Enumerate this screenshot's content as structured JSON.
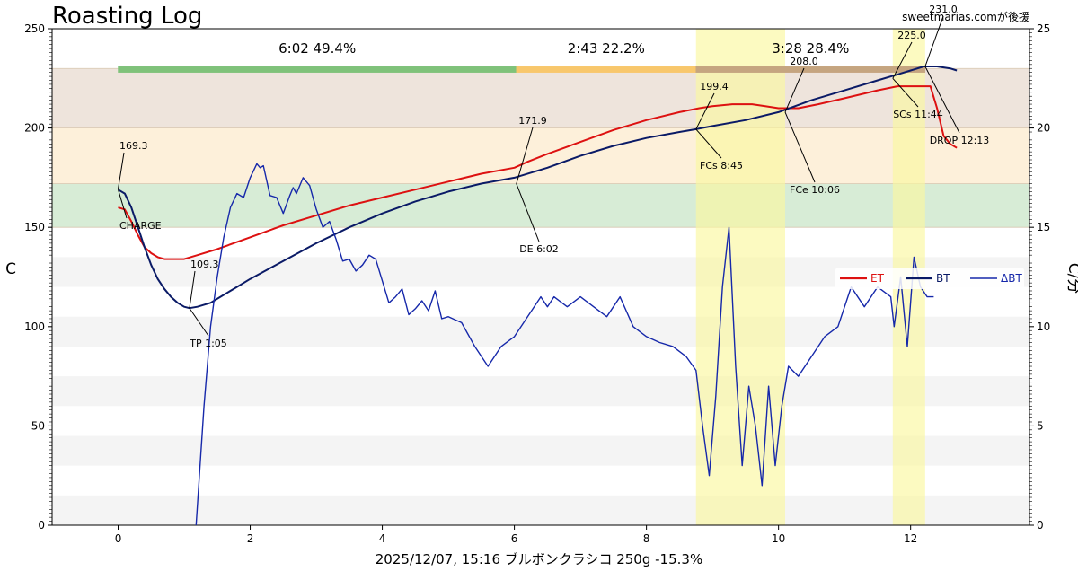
{
  "chart_data": {
    "type": "line",
    "title": "Roasting Log",
    "credit": "sweetmarias.comが後援",
    "xlabel": "2025/12/07, 15:16   ブルボンクラシコ   250g   -15.3%",
    "ylabel_left": "C",
    "ylabel_right": "C/分",
    "xlim": [
      -1,
      13.8
    ],
    "ylim_left": [
      0,
      250
    ],
    "ylim_right": [
      0,
      25
    ],
    "x_ticks": [
      0,
      2,
      4,
      6,
      8,
      10,
      12
    ],
    "y_ticks_left": [
      0,
      50,
      100,
      150,
      200,
      250
    ],
    "y_ticks_right": [
      0,
      5,
      10,
      15,
      20,
      25
    ],
    "legend": {
      "placement": "right",
      "entries": [
        "ET",
        "BT",
        "ΔBT"
      ]
    },
    "colors": {
      "et": "#dd1111",
      "bt": "#0a1a66",
      "ror": "#1628aa"
    },
    "bands": [
      {
        "y0": 200,
        "y1": 230,
        "color": "#eee4dc"
      },
      {
        "y0": 172,
        "y1": 200,
        "color": "#fdf0da"
      },
      {
        "y0": 150,
        "y1": 172,
        "color": "#d7ecd6"
      },
      {
        "y0": 120,
        "y1": 135,
        "color": "#f4f4f4"
      },
      {
        "y0": 90,
        "y1": 105,
        "color": "#f4f4f4"
      },
      {
        "y0": 60,
        "y1": 75,
        "color": "#f4f4f4"
      },
      {
        "y0": 30,
        "y1": 45,
        "color": "#f4f4f4"
      },
      {
        "y0": 0,
        "y1": 15,
        "color": "#f4f4f4"
      }
    ],
    "phase_spans": [
      {
        "x0": 8.75,
        "x1": 10.1
      },
      {
        "x0": 11.73,
        "x1": 12.22
      }
    ],
    "phases": [
      {
        "label": "6:02  49.4%",
        "x0": 0,
        "x1": 6.03,
        "color": "#7fc27a"
      },
      {
        "label": "2:43  22.2%",
        "x0": 6.03,
        "x1": 8.75,
        "color": "#f8c76c"
      },
      {
        "label": "3:28  28.4%",
        "x0": 8.75,
        "x1": 12.22,
        "color": "#c5a580"
      }
    ],
    "series": [
      {
        "name": "ET",
        "x": [
          0,
          0.1,
          0.2,
          0.3,
          0.4,
          0.5,
          0.6,
          0.7,
          0.8,
          0.9,
          1.0,
          1.2,
          1.5,
          2.0,
          2.5,
          3.0,
          3.5,
          4.0,
          4.5,
          5.0,
          5.5,
          6.0,
          6.2,
          6.5,
          7.0,
          7.5,
          8.0,
          8.5,
          8.8,
          9.0,
          9.3,
          9.6,
          9.8,
          10.0,
          10.3,
          10.6,
          11.0,
          11.5,
          11.8,
          12.0,
          12.2,
          12.3,
          12.4,
          12.5,
          12.6,
          12.7
        ],
        "y": [
          160,
          159,
          153,
          146,
          140,
          137,
          135,
          134,
          134,
          134,
          134,
          136,
          139,
          145,
          151,
          156,
          161,
          165,
          169,
          173,
          177,
          180,
          183,
          187,
          193,
          199,
          204,
          208,
          210,
          211,
          212,
          212,
          211,
          210,
          210,
          212,
          215,
          219,
          221,
          221,
          221,
          221,
          210,
          196,
          192,
          190
        ]
      },
      {
        "name": "BT",
        "x": [
          0,
          0.1,
          0.2,
          0.3,
          0.4,
          0.5,
          0.6,
          0.7,
          0.8,
          0.9,
          1.0,
          1.08,
          1.2,
          1.4,
          1.6,
          1.8,
          2.0,
          2.5,
          3.0,
          3.5,
          4.0,
          4.5,
          5.0,
          5.5,
          6.0,
          6.5,
          7.0,
          7.5,
          8.0,
          8.5,
          8.75,
          9.0,
          9.5,
          10.0,
          10.5,
          11.0,
          11.5,
          11.8,
          12.0,
          12.2,
          12.4,
          12.6,
          12.7
        ],
        "y": [
          169,
          167,
          160,
          150,
          140,
          131,
          124,
          119,
          115,
          112,
          110,
          109.3,
          110,
          112,
          116,
          120,
          124,
          133,
          142,
          150,
          157,
          163,
          168,
          172,
          175,
          180,
          186,
          191,
          195,
          198,
          199.4,
          201,
          204,
          208,
          214,
          219,
          224,
          227,
          229,
          231,
          231,
          230,
          229
        ]
      },
      {
        "name": "ΔBT",
        "axis": "right",
        "x": [
          1.18,
          1.3,
          1.4,
          1.5,
          1.6,
          1.7,
          1.8,
          1.9,
          2.0,
          2.1,
          2.15,
          2.2,
          2.3,
          2.4,
          2.5,
          2.6,
          2.65,
          2.7,
          2.8,
          2.9,
          3.0,
          3.1,
          3.2,
          3.3,
          3.4,
          3.5,
          3.6,
          3.7,
          3.8,
          3.9,
          4.0,
          4.1,
          4.2,
          4.3,
          4.4,
          4.5,
          4.6,
          4.7,
          4.8,
          4.9,
          5.0,
          5.2,
          5.4,
          5.6,
          5.8,
          6.0,
          6.2,
          6.4,
          6.5,
          6.6,
          6.8,
          7.0,
          7.2,
          7.4,
          7.6,
          7.8,
          8.0,
          8.2,
          8.4,
          8.6,
          8.75,
          8.85,
          8.95,
          9.05,
          9.15,
          9.25,
          9.35,
          9.45,
          9.55,
          9.65,
          9.75,
          9.85,
          9.95,
          10.05,
          10.15,
          10.3,
          10.5,
          10.7,
          10.9,
          11.1,
          11.3,
          11.5,
          11.7,
          11.75,
          11.85,
          11.95,
          12.05,
          12.15,
          12.25,
          12.35
        ],
        "y": [
          0,
          6,
          10,
          12.5,
          14.5,
          16,
          16.7,
          16.5,
          17.5,
          18.2,
          18,
          18.1,
          16.6,
          16.5,
          15.7,
          16.6,
          17,
          16.7,
          17.5,
          17.1,
          15.9,
          15,
          15.3,
          14.4,
          13.3,
          13.4,
          12.8,
          13.1,
          13.6,
          13.4,
          12.3,
          11.2,
          11.5,
          11.9,
          10.6,
          10.9,
          11.3,
          10.8,
          11.8,
          10.4,
          10.5,
          10.2,
          9,
          8,
          9,
          9.5,
          10.5,
          11.5,
          11,
          11.5,
          11,
          11.5,
          11,
          10.5,
          11.5,
          10,
          9.5,
          9.2,
          9,
          8.5,
          7.8,
          5,
          2.5,
          6.5,
          12,
          15,
          8,
          3,
          7,
          5,
          2,
          7,
          3,
          6,
          8,
          7.5,
          8.5,
          9.5,
          10,
          12,
          11,
          12,
          11.5,
          10,
          12.5,
          9,
          13.5,
          12,
          11.5,
          11.5
        ]
      }
    ],
    "events": [
      {
        "label": "CHARGE",
        "x": 0,
        "y": 169
      },
      {
        "label": "TP 1:05",
        "x": 1.08,
        "y": 109.3
      },
      {
        "label": "DE 6:02",
        "x": 6.03,
        "y": 172
      },
      {
        "label": "FCs 8:45",
        "x": 8.75,
        "y": 199.4
      },
      {
        "label": "FCe 10:06",
        "x": 10.1,
        "y": 208
      },
      {
        "label": "SCs 11:44",
        "x": 11.73,
        "y": 225
      },
      {
        "label": "DROP 12:13",
        "x": 12.22,
        "y": 231
      }
    ],
    "annotations": [
      {
        "label": "169.3",
        "x": 0,
        "y": 169.3
      },
      {
        "label": "109.3",
        "x": 1.08,
        "y": 109.3
      },
      {
        "label": "171.9",
        "x": 6.03,
        "y": 171.9
      },
      {
        "label": "199.4",
        "x": 8.75,
        "y": 199.4
      },
      {
        "label": "208.0",
        "x": 10.1,
        "y": 208.0
      },
      {
        "label": "225.0",
        "x": 11.73,
        "y": 225.0
      },
      {
        "label": "231.0",
        "x": 12.22,
        "y": 231.0
      }
    ]
  }
}
